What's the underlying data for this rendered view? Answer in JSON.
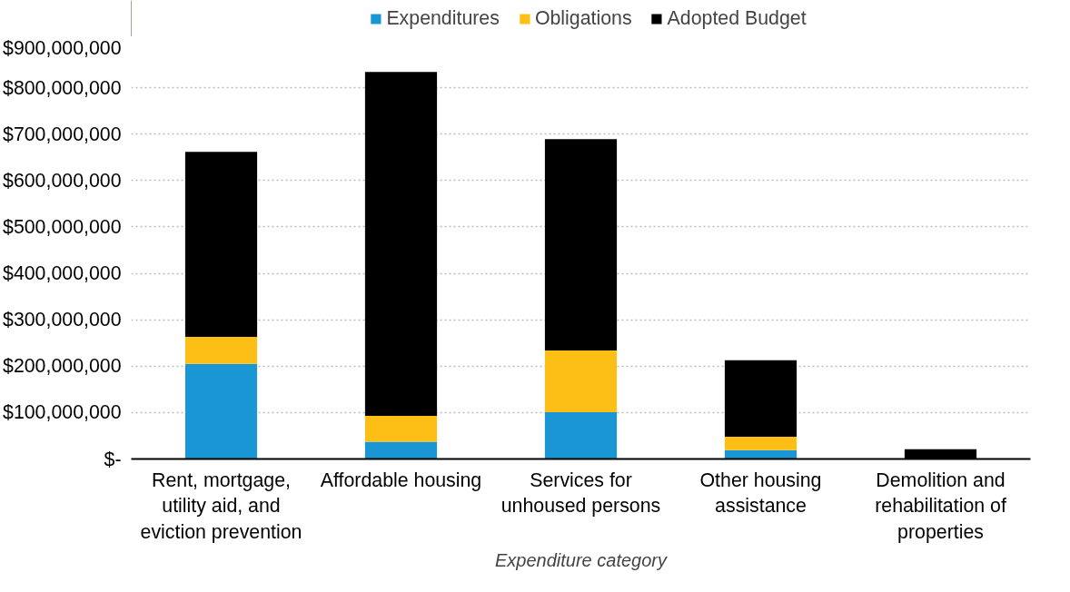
{
  "chart_data": {
    "type": "bar",
    "stacked": true,
    "xlabel": "Expenditure category",
    "categories": [
      "Rent, mortgage, utility aid, and eviction prevention",
      "Affordable housing",
      "Services for unhoused persons",
      "Other housing assistance",
      "Demolition and rehabilitation of properties"
    ],
    "series": [
      {
        "name": "Expenditures",
        "color": "#1a96d4",
        "values": [
          205000000,
          37000000,
          101000000,
          19000000,
          null
        ]
      },
      {
        "name": "Obligations",
        "color": "#fdbf16",
        "values": [
          58000000,
          56000000,
          133000000,
          29000000,
          null
        ]
      },
      {
        "name": "Adopted Budget",
        "color": "#000000",
        "values": [
          399000000,
          741000000,
          455000000,
          165000000,
          21000000
        ]
      }
    ],
    "ylim": [
      0,
      900000000
    ],
    "yticks": [
      {
        "value": 0,
        "label": "$-"
      },
      {
        "value": 100000000,
        "label": "$100,000,000"
      },
      {
        "value": 200000000,
        "label": "$200,000,000"
      },
      {
        "value": 300000000,
        "label": "$300,000,000"
      },
      {
        "value": 400000000,
        "label": "$400,000,000"
      },
      {
        "value": 500000000,
        "label": "$500,000,000"
      },
      {
        "value": 600000000,
        "label": "$600,000,000"
      },
      {
        "value": 700000000,
        "label": "$700,000,000"
      },
      {
        "value": 800000000,
        "label": "$800,000,000"
      },
      {
        "value": 900000000,
        "label": "$900,000,000"
      }
    ],
    "grid": "y",
    "legend": "top"
  }
}
